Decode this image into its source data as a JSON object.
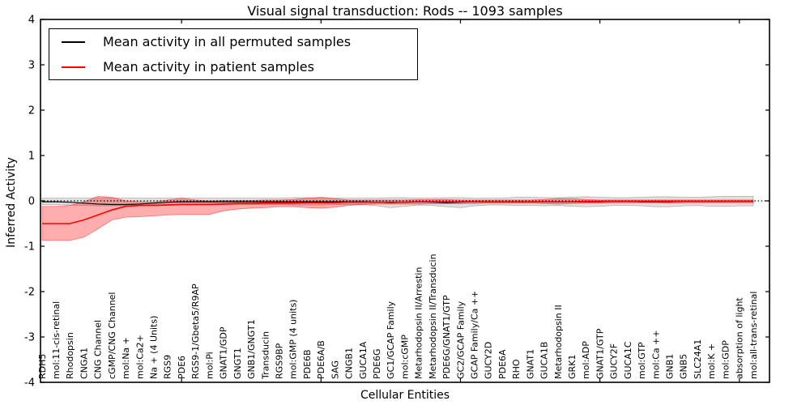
{
  "chart_data": {
    "type": "line",
    "title": "Visual signal transduction: Rods -- 1093 samples",
    "xlabel": "Cellular Entities",
    "ylabel": "Inferred Activity",
    "ylim": [
      -4,
      4
    ],
    "yticks": [
      4,
      3,
      2,
      1,
      0,
      -1,
      -2,
      -3,
      -4
    ],
    "x_major_tick_every": 10,
    "grid": false,
    "legend_position": "upper left",
    "zero_reference_line": {
      "y": 0,
      "style": "dotted",
      "color": "#000000"
    },
    "categories": [
      "RDH5",
      "mol:11-cis-retinal",
      "Rhodopsin",
      "CNGA1",
      "CNG Channel",
      "cGMP/CNG Channel",
      "mol:Na +",
      "mol:Ca2+",
      "Na + (4 Units)",
      "RGS9",
      "PDE6",
      "RGS9-1/Gbeta5/R9AP",
      "mol:Pi",
      "GNAT1/GDP",
      "GNGT1",
      "GNB1/GNGT1",
      "Transducin",
      "RGS9BP",
      "mol:GMP (4 units)",
      "PDE6B",
      "PDE6A/B",
      "SAG",
      "CNGB1",
      "GUCA1A",
      "PDE6G",
      "GC1/GCAP Family",
      "mol:cGMP",
      "Metarhodopsin II/Arrestin",
      "Metarhodopsin II/Transducin",
      "PDE6G/GNAT1/GTP",
      "GC2/GCAP Family",
      "GCAP Family/Ca ++",
      "GUCY2D",
      "PDE6A",
      "RHO",
      "GNAT1",
      "GUCA1B",
      "Metarhodopsin II",
      "GRK1",
      "mol:ADP",
      "GNAT1/GTP",
      "GUCY2F",
      "GUCA1C",
      "mol:GTP",
      "mol:Ca ++",
      "GNB1",
      "GNB5",
      "SLC24A1",
      "mol:K +",
      "mol:GDP",
      "absorption of light",
      "mol:all-trans-retinal"
    ],
    "series": [
      {
        "name": "Mean activity in all permuted samples",
        "color": "#000000",
        "values": [
          -0.02,
          -0.02,
          -0.03,
          -0.05,
          -0.07,
          -0.08,
          -0.08,
          -0.07,
          -0.05,
          -0.03,
          -0.02,
          -0.02,
          -0.02,
          -0.02,
          -0.02,
          -0.02,
          -0.02,
          -0.02,
          -0.02,
          -0.02,
          -0.02,
          -0.02,
          -0.02,
          -0.02,
          -0.03,
          -0.04,
          -0.03,
          -0.02,
          -0.03,
          -0.04,
          -0.03,
          -0.02,
          -0.02,
          -0.02,
          -0.02,
          -0.02,
          -0.02,
          -0.02,
          -0.02,
          -0.02,
          -0.02,
          -0.01,
          -0.01,
          -0.02,
          -0.02,
          -0.02,
          -0.01,
          -0.01,
          -0.01,
          -0.01,
          -0.01,
          -0.01
        ]
      },
      {
        "name": "Mean activity in patient samples",
        "color": "#ff0000",
        "values": [
          -0.5,
          -0.5,
          -0.5,
          -0.42,
          -0.31,
          -0.2,
          -0.12,
          -0.1,
          -0.1,
          -0.09,
          -0.08,
          -0.08,
          -0.08,
          -0.07,
          -0.06,
          -0.06,
          -0.05,
          -0.05,
          -0.05,
          -0.04,
          -0.04,
          -0.04,
          -0.03,
          -0.03,
          -0.03,
          -0.03,
          -0.03,
          -0.02,
          -0.02,
          -0.02,
          -0.02,
          -0.02,
          -0.02,
          -0.02,
          -0.02,
          -0.02,
          -0.02,
          -0.02,
          -0.02,
          -0.01,
          -0.01,
          -0.01,
          -0.01,
          -0.01,
          -0.01,
          -0.01,
          -0.01,
          -0.01,
          -0.01,
          -0.01,
          -0.01,
          -0.01
        ]
      }
    ],
    "bands": [
      {
        "name": "permuted samples range",
        "color": "#000000",
        "opacity": 0.12,
        "upper": [
          0.06,
          0.06,
          0.06,
          0.06,
          0.06,
          0.06,
          0.06,
          0.06,
          0.06,
          0.06,
          0.06,
          0.06,
          0.06,
          0.06,
          0.06,
          0.06,
          0.06,
          0.06,
          0.07,
          0.07,
          0.06,
          0.06,
          0.06,
          0.06,
          0.06,
          0.07,
          0.07,
          0.06,
          0.06,
          0.07,
          0.07,
          0.06,
          0.06,
          0.06,
          0.08,
          0.08,
          0.07,
          0.07,
          0.08,
          0.09,
          0.08,
          0.07,
          0.07,
          0.08,
          0.09,
          0.09,
          0.08,
          0.08,
          0.09,
          0.1,
          0.1,
          0.1
        ],
        "lower": [
          -0.08,
          -0.08,
          -0.09,
          -0.1,
          -0.11,
          -0.11,
          -0.11,
          -0.1,
          -0.09,
          -0.08,
          -0.08,
          -0.08,
          -0.08,
          -0.08,
          -0.08,
          -0.08,
          -0.08,
          -0.08,
          -0.09,
          -0.09,
          -0.09,
          -0.08,
          -0.08,
          -0.08,
          -0.11,
          -0.15,
          -0.12,
          -0.09,
          -0.1,
          -0.13,
          -0.15,
          -0.11,
          -0.09,
          -0.09,
          -0.1,
          -0.1,
          -0.11,
          -0.1,
          -0.12,
          -0.13,
          -0.12,
          -0.1,
          -0.1,
          -0.11,
          -0.13,
          -0.13,
          -0.11,
          -0.1,
          -0.12,
          -0.12,
          -0.11,
          -0.11
        ]
      },
      {
        "name": "patient samples range",
        "color": "#ff0000",
        "opacity": 0.32,
        "upper": [
          -0.12,
          -0.12,
          -0.1,
          -0.02,
          0.1,
          0.08,
          0.0,
          -0.02,
          -0.03,
          0.02,
          0.06,
          0.02,
          0.0,
          0.01,
          0.01,
          0.01,
          0.02,
          0.02,
          0.03,
          0.06,
          0.08,
          0.05,
          0.02,
          0.02,
          0.02,
          0.02,
          0.02,
          0.03,
          0.03,
          0.03,
          0.02,
          0.02,
          0.02,
          0.02,
          0.02,
          0.02,
          0.03,
          0.05,
          0.05,
          0.03,
          0.02,
          0.02,
          0.02,
          0.02,
          0.02,
          0.02,
          0.02,
          0.02,
          0.02,
          0.02,
          0.02,
          0.02
        ],
        "lower": [
          -0.87,
          -0.87,
          -0.87,
          -0.8,
          -0.62,
          -0.42,
          -0.36,
          -0.35,
          -0.33,
          -0.31,
          -0.3,
          -0.3,
          -0.3,
          -0.22,
          -0.18,
          -0.16,
          -0.15,
          -0.13,
          -0.13,
          -0.15,
          -0.16,
          -0.14,
          -0.1,
          -0.08,
          -0.07,
          -0.07,
          -0.07,
          -0.07,
          -0.06,
          -0.06,
          -0.06,
          -0.06,
          -0.05,
          -0.05,
          -0.05,
          -0.05,
          -0.06,
          -0.07,
          -0.06,
          -0.05,
          -0.05,
          -0.04,
          -0.04,
          -0.04,
          -0.04,
          -0.05,
          -0.04,
          -0.04,
          -0.04,
          -0.04,
          -0.04,
          -0.04
        ]
      }
    ]
  }
}
